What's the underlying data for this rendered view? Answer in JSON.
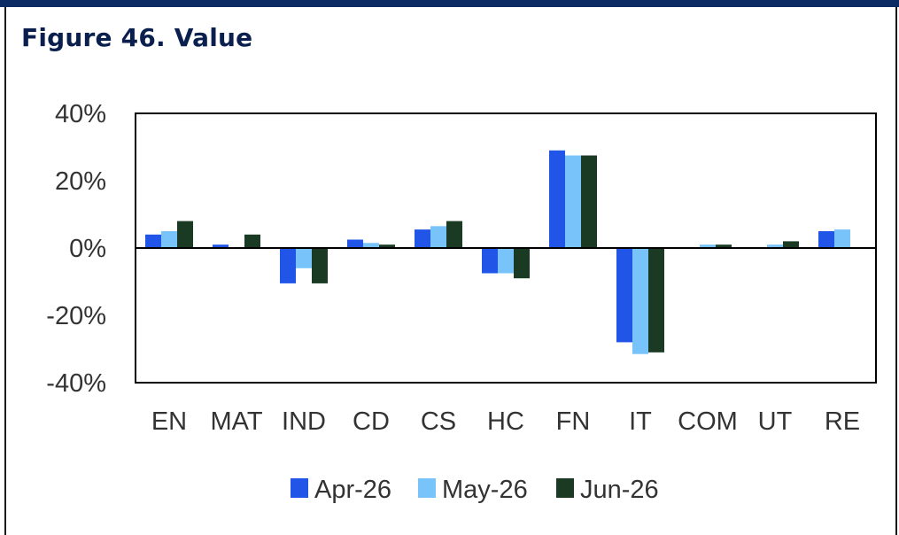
{
  "title": "Figure 46. Value",
  "colors": {
    "topbar": "#0c2a63",
    "title": "#0a1f4d"
  },
  "chart_data": {
    "type": "bar",
    "title": "",
    "xlabel": "",
    "ylabel": "",
    "ylim": [
      -40,
      40
    ],
    "y_ticks": [
      40,
      20,
      0,
      -20,
      -40
    ],
    "y_tick_labels": [
      "40%",
      "20%",
      "0%",
      "-20%",
      "-40%"
    ],
    "categories": [
      "EN",
      "MAT",
      "IND",
      "CD",
      "CS",
      "HC",
      "FN",
      "IT",
      "COM",
      "UT",
      "RE"
    ],
    "series": [
      {
        "name": "Apr-26",
        "color": "#2155e8",
        "values": [
          4,
          1,
          -10.5,
          2.5,
          5.5,
          -7.5,
          29,
          -28,
          0,
          0,
          5
        ]
      },
      {
        "name": "May-26",
        "color": "#79c3fb",
        "values": [
          5,
          0,
          -6,
          1.5,
          6.5,
          -7.5,
          27.5,
          -31.5,
          1,
          1,
          5.5
        ]
      },
      {
        "name": "Jun-26",
        "color": "#1a3a24",
        "values": [
          8,
          4,
          -10.5,
          1,
          8,
          -9,
          27.5,
          -31,
          1,
          2,
          0
        ]
      }
    ],
    "grid": false,
    "legend": "bottom"
  }
}
